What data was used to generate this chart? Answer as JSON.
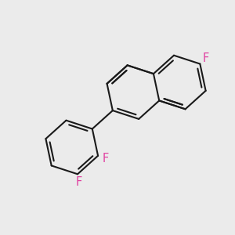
{
  "bg_color": "#ebebeb",
  "bond_color": "#1a1a1a",
  "bond_width": 1.5,
  "F_color": "#e040a0",
  "F_fontsize": 10.5,
  "figsize": [
    3.0,
    3.0
  ],
  "dpi": 100,
  "xlim": [
    -4.2,
    4.2
  ],
  "ylim": [
    -4.0,
    3.8
  ],
  "bl": 1.4
}
